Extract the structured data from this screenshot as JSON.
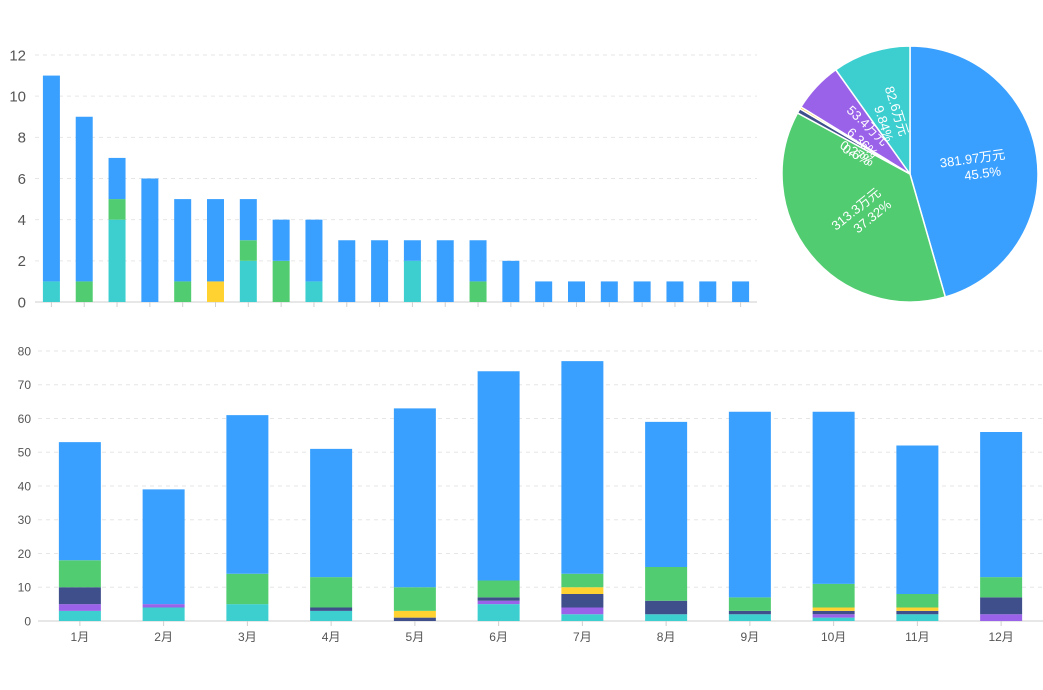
{
  "colors": {
    "blue": "#3aa0ff",
    "green": "#52cc71",
    "teal": "#3dcfd0",
    "yellow": "#ffd231",
    "navy": "#3f4f8c",
    "purple": "#9a62e8"
  },
  "chart_data": [
    {
      "type": "bar",
      "stacked": true,
      "grid": true,
      "legend": "none",
      "ylim": [
        0,
        12
      ],
      "yticks": [
        "0",
        "2",
        "4",
        "6",
        "8",
        "10",
        "12"
      ],
      "categories": [
        "",
        "",
        "",
        "",
        "",
        "",
        "",
        "",
        "",
        "",
        "",
        "",
        "",
        "",
        "",
        "",
        "",
        "",
        "",
        "",
        "",
        ""
      ],
      "series": [
        {
          "color": "teal",
          "values": [
            1,
            0,
            4,
            0,
            0,
            0,
            2,
            0,
            1,
            0,
            0,
            2,
            0,
            0,
            0,
            0,
            0,
            0,
            0,
            0,
            0,
            0
          ]
        },
        {
          "color": "green",
          "values": [
            0,
            1,
            1,
            0,
            1,
            0,
            1,
            2,
            0,
            0,
            0,
            0,
            0,
            1,
            0,
            0,
            0,
            0,
            0,
            0,
            0,
            0
          ]
        },
        {
          "color": "yellow",
          "values": [
            0,
            0,
            0,
            0,
            0,
            1,
            0,
            0,
            0,
            0,
            0,
            0,
            0,
            0,
            0,
            0,
            0,
            0,
            0,
            0,
            0,
            0
          ]
        },
        {
          "color": "blue",
          "values": [
            10,
            8,
            2,
            6,
            4,
            4,
            2,
            2,
            3,
            3,
            3,
            1,
            3,
            2,
            2,
            1,
            1,
            1,
            1,
            1,
            1,
            1
          ]
        }
      ]
    },
    {
      "type": "pie",
      "slices": [
        {
          "color": "blue",
          "value": 45.5,
          "label_value": "381.97万元",
          "label_pct": "45.5%"
        },
        {
          "color": "green",
          "value": 37.32,
          "label_value": "313.3万元",
          "label_pct": "37.32%"
        },
        {
          "color": "navy",
          "value": 0.6,
          "label_value": "5.0万元",
          "label_pct": "0.6%"
        },
        {
          "color": "yellow",
          "value": 0.27,
          "label_value": "2.3万元",
          "label_pct": "0.27%"
        },
        {
          "color": "purple",
          "value": 6.36,
          "label_value": "53.4万元",
          "label_pct": "6.36%"
        },
        {
          "color": "teal",
          "value": 9.84,
          "label_value": "82.6万元",
          "label_pct": "9.84%"
        }
      ]
    },
    {
      "type": "bar",
      "stacked": true,
      "grid": true,
      "legend": "none",
      "ylim": [
        0,
        80
      ],
      "yticks": [
        "0",
        "10",
        "20",
        "30",
        "40",
        "50",
        "60",
        "70",
        "80"
      ],
      "categories": [
        "1月",
        "2月",
        "3月",
        "4月",
        "5月",
        "6月",
        "7月",
        "8月",
        "9月",
        "10月",
        "11月",
        "12月"
      ],
      "series": [
        {
          "color": "teal",
          "values": [
            3,
            4,
            5,
            3,
            0,
            5,
            2,
            2,
            2,
            1,
            2,
            0
          ]
        },
        {
          "color": "purple",
          "values": [
            2,
            1,
            0,
            0,
            0,
            1,
            2,
            0,
            0,
            1,
            0,
            2
          ]
        },
        {
          "color": "navy",
          "values": [
            5,
            0,
            0,
            1,
            1,
            1,
            4,
            4,
            1,
            1,
            1,
            5
          ]
        },
        {
          "color": "yellow",
          "values": [
            0,
            0,
            0,
            0,
            2,
            0,
            2,
            0,
            0,
            1,
            1,
            0
          ]
        },
        {
          "color": "green",
          "values": [
            8,
            0,
            9,
            9,
            7,
            5,
            4,
            10,
            4,
            7,
            4,
            6
          ]
        },
        {
          "color": "blue",
          "values": [
            35,
            34,
            47,
            38,
            53,
            62,
            63,
            43,
            55,
            51,
            44,
            43
          ]
        }
      ]
    }
  ]
}
